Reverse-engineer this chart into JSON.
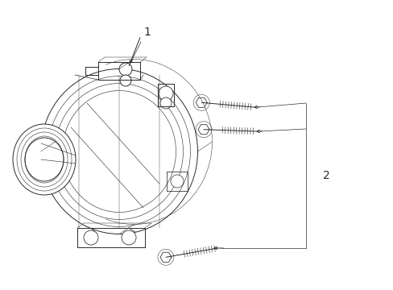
{
  "background_color": "#ffffff",
  "line_color": "#2a2a2a",
  "label_1": "1",
  "label_2": "2",
  "label_fontsize": 10,
  "figsize": [
    4.89,
    3.6
  ],
  "dpi": 100,
  "xlim": [
    0,
    489
  ],
  "ylim": [
    0,
    360
  ]
}
